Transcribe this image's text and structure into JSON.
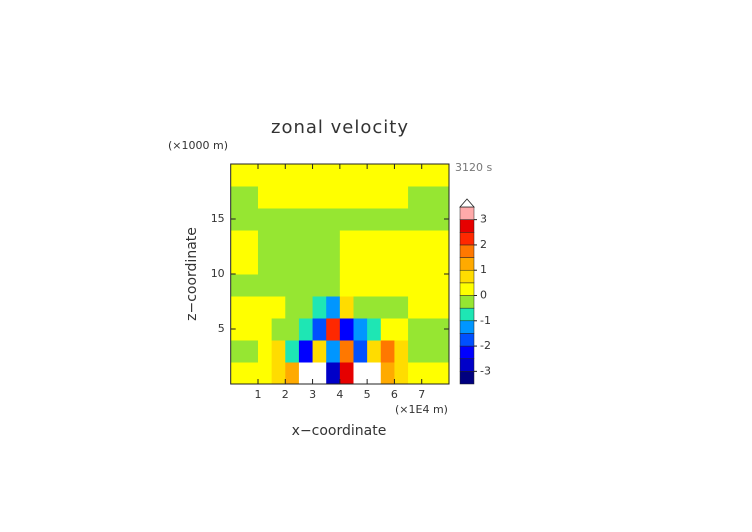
{
  "chart_data": {
    "type": "contour",
    "title": "zonal velocity",
    "time_label": "3120 s",
    "x_label": "x−coordinate",
    "y_label": "z−coordinate",
    "x_unit": "(×1E4 m)",
    "y_unit": "(×1000 m)",
    "xlim": [
      0,
      8
    ],
    "ylim": [
      0,
      20
    ],
    "xticks": [
      1,
      2,
      3,
      4,
      5,
      6,
      7
    ],
    "yticks": [
      5,
      10,
      15
    ],
    "x": [
      0.25,
      0.75,
      1.25,
      1.75,
      2.25,
      2.75,
      3.25,
      3.75,
      4.25,
      4.75,
      5.25,
      5.75,
      6.25,
      6.75,
      7.25,
      7.75
    ],
    "y": [
      1,
      3,
      5,
      7,
      9,
      11,
      13,
      15,
      17,
      19
    ],
    "z": [
      [
        0.2,
        0.2,
        0.2,
        0.7,
        1.2,
        3.6,
        3.6,
        -2.7,
        2.7,
        3.6,
        3.6,
        1.2,
        0.7,
        0.2,
        0.2,
        0.2
      ],
      [
        -0.2,
        -0.2,
        0.2,
        0.7,
        -0.7,
        -2.2,
        0.7,
        -1.2,
        1.7,
        -1.7,
        0.7,
        1.7,
        0.7,
        -0.2,
        -0.2,
        -0.2
      ],
      [
        0.2,
        0.2,
        0.2,
        -0.2,
        -0.2,
        -0.8,
        -1.8,
        2.2,
        -2.2,
        -1.2,
        -0.7,
        0.2,
        0.2,
        -0.2,
        -0.2,
        -0.2
      ],
      [
        0.2,
        0.2,
        0.2,
        0.2,
        -0.2,
        -0.2,
        -0.8,
        -1.2,
        0.8,
        -0.2,
        -0.2,
        -0.2,
        -0.2,
        0.2,
        0.2,
        0.2
      ],
      [
        -0.2,
        -0.2,
        -0.2,
        -0.2,
        -0.2,
        -0.2,
        -0.2,
        -0.2,
        0.2,
        0.2,
        0.2,
        0.2,
        0.2,
        0.2,
        0.2,
        0.2
      ],
      [
        0.2,
        0.2,
        -0.2,
        -0.2,
        -0.2,
        -0.2,
        -0.2,
        -0.2,
        0.2,
        0.2,
        0.2,
        0.2,
        0.2,
        0.2,
        0.2,
        0.2
      ],
      [
        0.2,
        0.2,
        -0.2,
        -0.2,
        -0.2,
        -0.2,
        -0.2,
        -0.2,
        0.2,
        0.2,
        0.2,
        0.2,
        0.2,
        0.2,
        0.2,
        0.2
      ],
      [
        -0.2,
        -0.2,
        -0.2,
        -0.2,
        -0.2,
        -0.2,
        -0.2,
        -0.2,
        -0.2,
        -0.2,
        -0.2,
        -0.2,
        -0.2,
        -0.2,
        -0.2,
        -0.2
      ],
      [
        -0.2,
        -0.2,
        0.2,
        0.2,
        0.2,
        0.2,
        0.2,
        0.2,
        0.2,
        0.2,
        0.2,
        0.2,
        0.2,
        -0.2,
        -0.2,
        -0.2
      ],
      [
        0.2,
        0.2,
        0.2,
        0.2,
        0.2,
        0.2,
        0.2,
        0.2,
        0.2,
        0.2,
        0.2,
        0.2,
        0.2,
        0.2,
        0.2,
        0.2
      ]
    ],
    "levels": [
      -3.5,
      -3,
      -2.5,
      -2,
      -1.5,
      -1,
      -0.5,
      0,
      0.5,
      1,
      1.5,
      2,
      2.5,
      3,
      3.5
    ],
    "colors": [
      "#000080",
      "#0000c8",
      "#0000ff",
      "#0050ff",
      "#0096ff",
      "#1ee6b4",
      "#96e632",
      "#ffff00",
      "#ffdc00",
      "#ffaa00",
      "#ff7800",
      "#ff2800",
      "#e60000",
      "#ffaaaa",
      "#ffffff"
    ],
    "colorbar_ticks": [
      -3,
      -2,
      -1,
      0,
      1,
      2,
      3
    ]
  }
}
